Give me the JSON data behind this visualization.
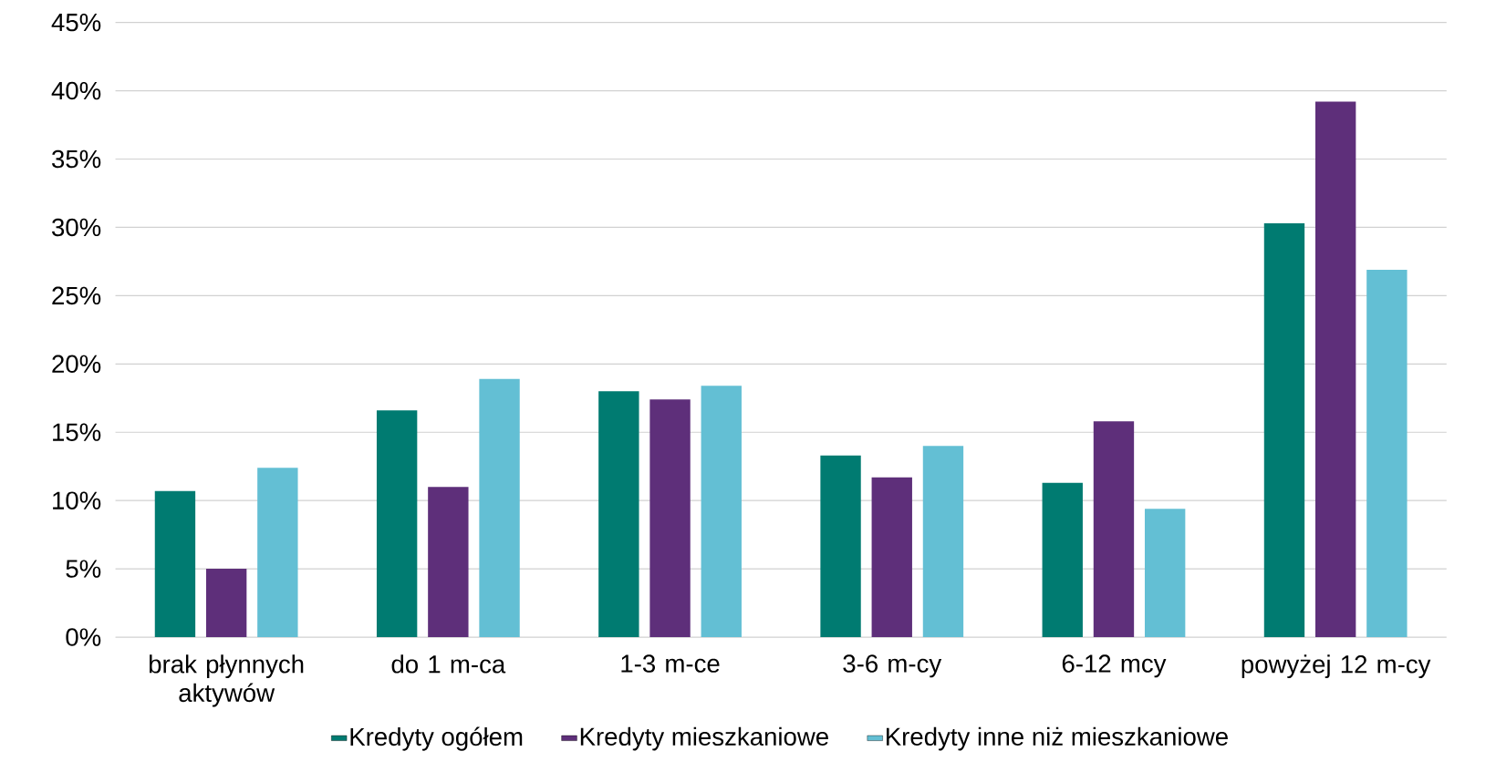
{
  "chart_data": {
    "type": "bar",
    "categories": [
      "brak płynnych aktywów",
      "do 1 m-ca",
      "1-3 m-ce",
      "3-6 m-cy",
      "6-12 mcy",
      "powyżej 12 m-cy"
    ],
    "series": [
      {
        "name": "Kredyty ogółem",
        "color": "#007b71",
        "values": [
          10.7,
          16.6,
          18.0,
          13.3,
          11.3,
          30.3
        ]
      },
      {
        "name": "Kredyty mieszkaniowe",
        "color": "#5e2f7a",
        "values": [
          5.0,
          11.0,
          17.4,
          11.7,
          15.8,
          39.2
        ]
      },
      {
        "name": "Kredyty inne niż mieszkaniowe",
        "color": "#63bfd4",
        "values": [
          12.4,
          18.9,
          18.4,
          14.0,
          9.4,
          26.9
        ]
      }
    ],
    "ylim": [
      0,
      45
    ],
    "yticks": [
      {
        "value": 0,
        "label": "0%"
      },
      {
        "value": 5,
        "label": "5%"
      },
      {
        "value": 10,
        "label": "10%"
      },
      {
        "value": 15,
        "label": "15%"
      },
      {
        "value": 20,
        "label": "20%"
      },
      {
        "value": 25,
        "label": "25%"
      },
      {
        "value": 30,
        "label": "30%"
      },
      {
        "value": 35,
        "label": "35%"
      },
      {
        "value": 40,
        "label": "40%"
      },
      {
        "value": 45,
        "label": "45%"
      }
    ],
    "grid": "y",
    "legend": "bottom"
  }
}
